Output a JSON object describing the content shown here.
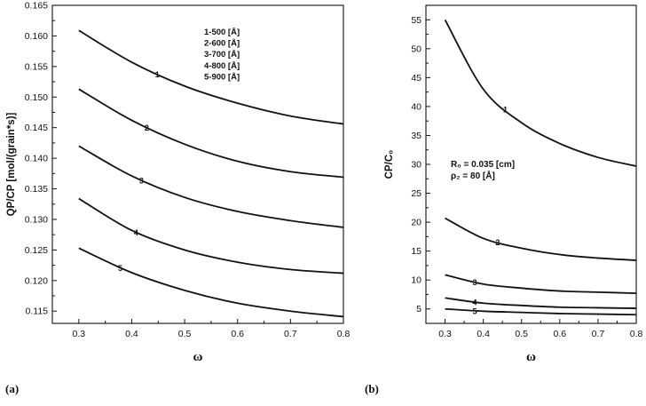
{
  "chart_data": [
    {
      "type": "line",
      "panel_label": "(a)",
      "xlabel": "ω",
      "ylabel": "QP/CP [mol/(grain*s)]",
      "xlim": [
        0.25,
        0.8
      ],
      "ylim": [
        0.113,
        0.165
      ],
      "x_ticks": [
        "0.3",
        "0.4",
        "0.5",
        "0.6",
        "0.7",
        "0.8"
      ],
      "y_ticks": [
        "0.115",
        "0.120",
        "0.125",
        "0.130",
        "0.135",
        "0.140",
        "0.145",
        "0.150",
        "0.155",
        "0.160",
        "0.165"
      ],
      "legend": [
        "1-500 [Å]",
        "2-600 [Å]",
        "3-700 [Å]",
        "4-800 [Å]",
        "5-900 [Å]"
      ],
      "legend_position": "top-right",
      "grid": false,
      "x": [
        0.3,
        0.4,
        0.5,
        0.6,
        0.7,
        0.8
      ],
      "series": [
        {
          "name": "1",
          "values": [
            0.1609,
            0.1557,
            0.1518,
            0.149,
            0.1469,
            0.1456
          ]
        },
        {
          "name": "2",
          "values": [
            0.1513,
            0.1462,
            0.1423,
            0.1395,
            0.1378,
            0.1369
          ]
        },
        {
          "name": "3",
          "values": [
            0.142,
            0.1371,
            0.1336,
            0.1313,
            0.1298,
            0.1287
          ]
        },
        {
          "name": "4",
          "values": [
            0.1334,
            0.1282,
            0.125,
            0.123,
            0.1218,
            0.1212
          ]
        },
        {
          "name": "5",
          "values": [
            0.1253,
            0.1213,
            0.1184,
            0.1163,
            0.115,
            0.1141
          ]
        }
      ],
      "curve_labels": [
        {
          "text": "1",
          "x": 0.45
        },
        {
          "text": "2",
          "x": 0.43
        },
        {
          "text": "3",
          "x": 0.42
        },
        {
          "text": "4",
          "x": 0.41
        },
        {
          "text": "5",
          "x": 0.38
        }
      ]
    },
    {
      "type": "line",
      "panel_label": "(b)",
      "xlabel": "ω",
      "ylabel": "CP/C₀",
      "xlim": [
        0.25,
        0.8
      ],
      "ylim": [
        2.5,
        57.5
      ],
      "x_ticks": [
        "0.3",
        "0.4",
        "0.5",
        "0.6",
        "0.7",
        "0.8"
      ],
      "y_ticks": [
        "5",
        "10",
        "15",
        "20",
        "25",
        "30",
        "35",
        "40",
        "45",
        "50",
        "55"
      ],
      "annotations": [
        "R₀ = 0.035 [cm]",
        "ρ₂ = 80 [Å]"
      ],
      "grid": false,
      "x": [
        0.3,
        0.4,
        0.5,
        0.6,
        0.7,
        0.8
      ],
      "series": [
        {
          "name": "1",
          "values": [
            55.0,
            43.0,
            37.2,
            33.6,
            31.2,
            29.7
          ]
        },
        {
          "name": "2",
          "values": [
            20.7,
            17.2,
            15.5,
            14.4,
            13.8,
            13.4
          ]
        },
        {
          "name": "3",
          "values": [
            10.9,
            9.3,
            8.6,
            8.1,
            7.9,
            7.7
          ]
        },
        {
          "name": "4",
          "values": [
            6.9,
            6.0,
            5.6,
            5.3,
            5.2,
            5.1
          ]
        },
        {
          "name": "5",
          "values": [
            5.0,
            4.6,
            4.4,
            4.2,
            4.1,
            4.0
          ]
        }
      ],
      "curve_labels": [
        {
          "text": "1",
          "x": 0.46
        },
        {
          "text": "2",
          "x": 0.44
        },
        {
          "text": "3",
          "x": 0.38
        },
        {
          "text": "4",
          "x": 0.38
        },
        {
          "text": "5",
          "x": 0.38
        }
      ]
    }
  ]
}
